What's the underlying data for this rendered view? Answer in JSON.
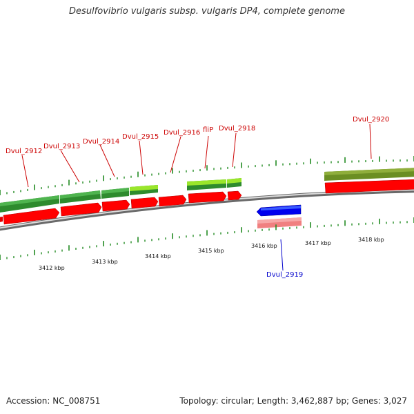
{
  "title": "Desulfovibrio vulgaris subsp. vulgaris DP4, complete genome",
  "footer": {
    "accession": "Accession: NC_008751",
    "topology": "Topology: circular; Length: 3,462,887 bp; Genes: 3,027"
  },
  "colors": {
    "backbone": "#8a8a8a",
    "forward_cds": "#ff0000",
    "reverse_cds": "#0000ee",
    "reverse_rna": "#f08080",
    "gene_green": "#2e8b2e",
    "gene_lightgreen": "#7fdc1a",
    "gene_olive": "#6b8e23",
    "tick": "#228b22",
    "forward_label": "#cc0000",
    "reverse_label": "#0000cc"
  },
  "kbp_labels": [
    "3412 kbp",
    "3413 kbp",
    "3414 kbp",
    "3415 kbp",
    "3416 kbp",
    "3417 kbp",
    "3418 kbp"
  ],
  "forward_gene_labels": [
    "Dvul_2912",
    "Dvul_2913",
    "Dvul_2914",
    "Dvul_2915",
    "Dvul_2916",
    "fliP",
    "Dvul_2918",
    "Dvul_2920"
  ],
  "reverse_gene_labels": [
    "Dvul_2919"
  ]
}
